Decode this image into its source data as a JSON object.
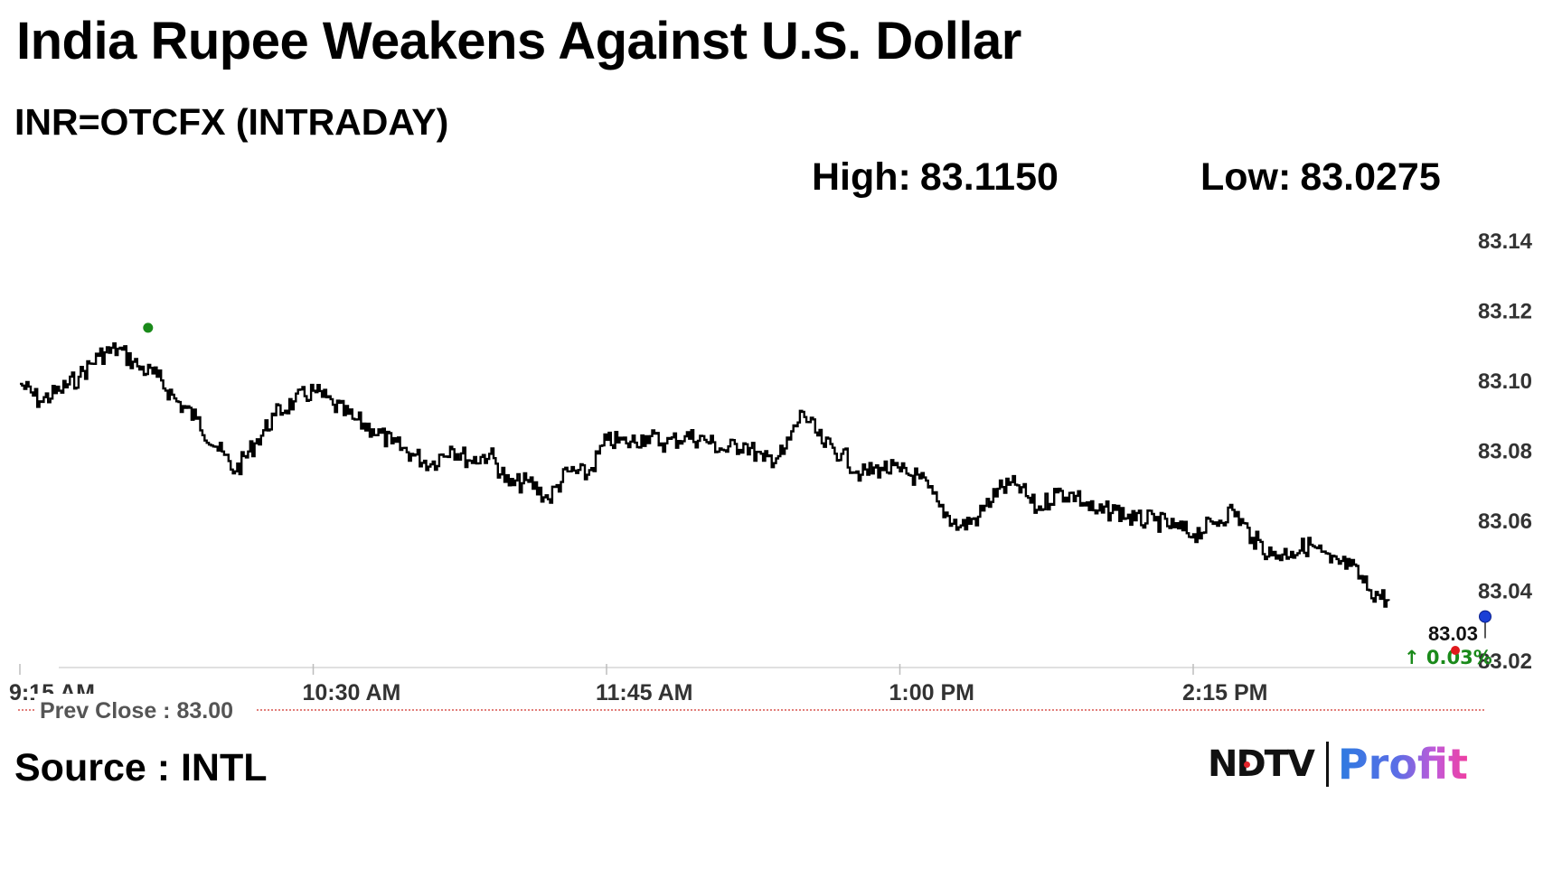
{
  "title": "India Rupee Weakens Against U.S. Dollar",
  "subtitle": "INR=OTCFX (INTRADAY)",
  "high": {
    "label": "High:",
    "value": "83.1150"
  },
  "low": {
    "label": "Low:",
    "value": "83.0275"
  },
  "source": "Source : INTL",
  "logo": {
    "brand": "NDTV",
    "product": "Profit"
  },
  "colors": {
    "line": "#000000",
    "high_marker": "#1a8a1a",
    "current_marker": "#1a3fd6",
    "low_marker": "#e0191c",
    "change_text": "#1a8a1a",
    "prev_close_line": "#d9534f",
    "axis_text": "#333333"
  },
  "chart_data": {
    "type": "line",
    "title": "India Rupee Weakens Against U.S. Dollar",
    "subtitle": "INR=OTCFX (INTRADAY)",
    "xlabel": "",
    "ylabel": "",
    "x_ticks": [
      "9:15 AM",
      "10:30 AM",
      "11:45 AM",
      "1:00 PM",
      "2:15 PM"
    ],
    "y_ticks": [
      83.14,
      83.12,
      83.1,
      83.08,
      83.06,
      83.04,
      83.02
    ],
    "ylim": [
      83.02,
      83.14
    ],
    "grid": false,
    "series": [
      {
        "x": [
          "9:15 AM",
          "9:20 AM",
          "9:25 AM",
          "9:30 AM",
          "9:35 AM",
          "9:40 AM",
          "9:45 AM",
          "9:50 AM",
          "9:55 AM",
          "10:00 AM",
          "10:05 AM",
          "10:10 AM",
          "10:15 AM",
          "10:20 AM",
          "10:25 AM",
          "10:30 AM",
          "10:35 AM",
          "10:40 AM",
          "10:45 AM",
          "10:50 AM",
          "10:55 AM",
          "11:00 AM",
          "11:05 AM",
          "11:10 AM",
          "11:15 AM",
          "11:20 AM",
          "11:25 AM",
          "11:30 AM",
          "11:35 AM",
          "11:40 AM",
          "11:45 AM",
          "11:50 AM",
          "11:55 AM",
          "12:00 PM",
          "12:05 PM",
          "12:10 PM",
          "12:15 PM",
          "12:20 PM",
          "12:25 PM",
          "12:30 PM",
          "12:35 PM",
          "12:40 PM",
          "12:45 PM",
          "12:50 PM",
          "12:55 PM",
          "1:00 PM",
          "1:05 PM",
          "1:10 PM",
          "1:15 PM",
          "1:20 PM",
          "1:25 PM",
          "1:30 PM",
          "1:35 PM",
          "1:40 PM",
          "1:45 PM",
          "1:50 PM",
          "1:55 PM",
          "2:00 PM",
          "2:05 PM",
          "2:10 PM",
          "2:15 PM",
          "2:20 PM",
          "2:25 PM",
          "2:30 PM",
          "2:35 PM",
          "2:40 PM",
          "2:45 PM",
          "2:50 PM",
          "2:55 PM",
          "3:00 PM",
          "3:05 PM"
        ],
        "values": [
          83.099,
          83.094,
          83.097,
          83.101,
          83.107,
          83.109,
          83.104,
          83.101,
          83.094,
          83.089,
          83.081,
          83.074,
          83.082,
          83.09,
          83.094,
          83.097,
          83.093,
          83.089,
          83.086,
          83.082,
          83.079,
          83.076,
          83.081,
          83.077,
          83.079,
          83.07,
          83.071,
          83.066,
          83.074,
          83.073,
          83.083,
          83.082,
          83.084,
          83.082,
          83.084,
          83.083,
          83.08,
          83.082,
          83.077,
          83.079,
          83.091,
          83.082,
          83.079,
          83.073,
          83.075,
          83.074,
          83.072,
          83.064,
          83.058,
          83.061,
          83.069,
          83.07,
          83.063,
          83.068,
          83.067,
          83.062,
          83.063,
          83.06,
          83.06,
          83.058,
          83.056,
          83.059,
          83.063,
          83.055,
          83.05,
          83.051,
          83.053,
          83.048,
          83.047,
          83.04,
          83.037
        ]
      }
    ],
    "high": 83.115,
    "low": 83.0275,
    "last_value_label": "83.03",
    "change_label": "0.03%",
    "prev_close_label": "Prev Close : 83.00"
  }
}
